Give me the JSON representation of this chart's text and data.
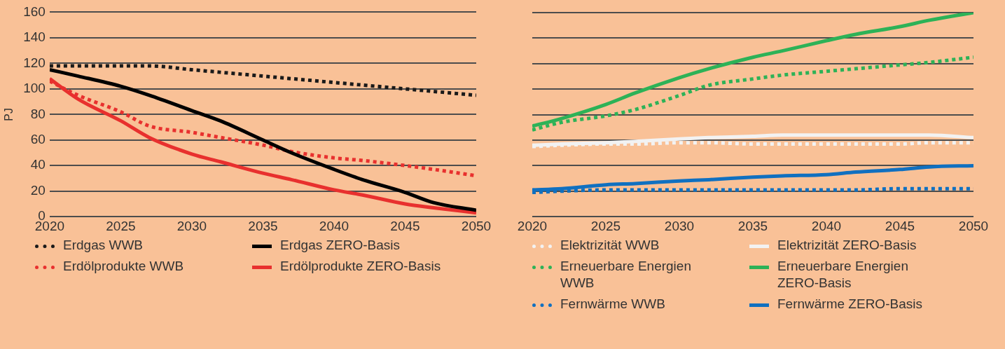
{
  "chart_data": [
    {
      "type": "line",
      "ylabel": "PJ",
      "x": [
        2020,
        2022,
        2025,
        2027,
        2030,
        2032,
        2035,
        2037,
        2040,
        2042,
        2045,
        2047,
        2050
      ],
      "xlim": [
        2020,
        2050
      ],
      "xticks": [
        2020,
        2025,
        2030,
        2035,
        2040,
        2045,
        2050
      ],
      "ylim": [
        0,
        160
      ],
      "yticks": [
        0,
        20,
        40,
        60,
        80,
        100,
        120,
        140,
        160
      ],
      "grid": "y",
      "legend": "bottom",
      "series": [
        {
          "name": "Erdgas WWB",
          "color": "#1a1a1a",
          "line_style": "dotted",
          "values": [
            118,
            118,
            118,
            118,
            115,
            113,
            110,
            108,
            105,
            103,
            100,
            98,
            95
          ]
        },
        {
          "name": "Erdgas ZERO-Basis",
          "color": "#000000",
          "line_style": "solid",
          "values": [
            115,
            110,
            102,
            95,
            83,
            75,
            60,
            50,
            37,
            29,
            19,
            11,
            5
          ]
        },
        {
          "name": "Erdölprodukte WWB",
          "color": "#e8302e",
          "line_style": "dotted",
          "values": [
            106,
            95,
            82,
            71,
            66,
            62,
            56,
            51,
            46,
            44,
            40,
            37,
            32
          ]
        },
        {
          "name": "Erdölprodukte ZERO-Basis",
          "color": "#e8302e",
          "line_style": "solid",
          "values": [
            108,
            92,
            75,
            62,
            49,
            43,
            34,
            29,
            21,
            17,
            10,
            7,
            3
          ]
        }
      ]
    },
    {
      "type": "line",
      "x": [
        2020,
        2022,
        2025,
        2027,
        2030,
        2032,
        2035,
        2037,
        2040,
        2042,
        2045,
        2047,
        2050
      ],
      "xlim": [
        2020,
        2050
      ],
      "xticks": [
        2020,
        2025,
        2030,
        2035,
        2040,
        2045,
        2050
      ],
      "ylim": [
        0,
        160
      ],
      "yticks": [
        0,
        20,
        40,
        60,
        80,
        100,
        120,
        140,
        160
      ],
      "grid": "y",
      "legend": "bottom",
      "tick_labels": "x",
      "series": [
        {
          "name": "Elektrizität WWB",
          "color": "#f2f2f2",
          "line_style": "dotted",
          "values": [
            55,
            56,
            57,
            57,
            58,
            58,
            57,
            57,
            57,
            57,
            57,
            58,
            58
          ]
        },
        {
          "name": "Elektrizität ZERO-Basis",
          "color": "#f2f2f2",
          "line_style": "solid",
          "values": [
            56,
            57,
            58,
            59,
            61,
            62,
            63,
            64,
            64,
            64,
            64,
            64,
            62
          ]
        },
        {
          "name": "Erneuerbare Energien WWB",
          "color": "#2db257",
          "line_style": "dotted",
          "values": [
            68,
            74,
            79,
            84,
            95,
            103,
            108,
            111,
            114,
            116,
            119,
            121,
            125
          ]
        },
        {
          "name": "Erneuerbare Energien ZERO-Basis",
          "color": "#2db257",
          "line_style": "solid",
          "values": [
            71,
            77,
            88,
            97,
            109,
            116,
            125,
            130,
            138,
            143,
            149,
            154,
            160
          ]
        },
        {
          "name": "Fernwärme WWB",
          "color": "#1070c0",
          "line_style": "dotted",
          "values": [
            19,
            20,
            21,
            21,
            21,
            21,
            21,
            21,
            21,
            21,
            22,
            22,
            22
          ]
        },
        {
          "name": "Fernwärme ZERO-Basis",
          "color": "#1070c0",
          "line_style": "solid",
          "values": [
            21,
            22,
            25,
            26,
            28,
            29,
            31,
            32,
            33,
            35,
            37,
            39,
            40
          ]
        }
      ]
    }
  ]
}
